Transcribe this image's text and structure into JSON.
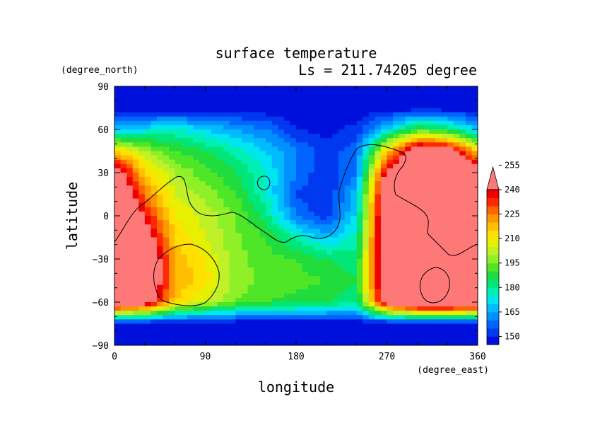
{
  "chart_data": {
    "type": "heatmap",
    "title": "surface temperature",
    "subtitle": "Ls = 211.74205 degree",
    "xlabel": "longitude",
    "ylabel": "latitude",
    "x_unit": "(degree_east)",
    "y_unit": "(degree_north)",
    "xlim": [
      0,
      360
    ],
    "ylim": [
      -90,
      90
    ],
    "x_ticks": [
      "0",
      "90",
      "180",
      "270",
      "360"
    ],
    "y_ticks": [
      "90",
      "60",
      "30",
      "0",
      "−30",
      "−60",
      "−90"
    ],
    "x_tick_values": [
      0,
      90,
      180,
      270,
      360
    ],
    "y_tick_values": [
      90,
      60,
      30,
      0,
      -30,
      -60,
      -90
    ],
    "colorbar": {
      "levels": [
        145,
        150,
        155,
        160,
        165,
        170,
        175,
        180,
        185,
        190,
        195,
        200,
        205,
        210,
        215,
        220,
        225,
        230,
        235,
        240,
        245,
        250,
        255,
        260
      ],
      "tick_labels": [
        "150",
        "165",
        "180",
        "195",
        "210",
        "225",
        "240",
        "255"
      ],
      "tick_values": [
        150,
        165,
        180,
        195,
        210,
        225,
        240,
        255
      ],
      "colors": [
        "#0010dc",
        "#0038f0",
        "#0064ff",
        "#0090ff",
        "#00bcff",
        "#00e6f0",
        "#00f0b4",
        "#00e678",
        "#20dc3c",
        "#50e628",
        "#90f028",
        "#c0f028",
        "#e6f000",
        "#ffe000",
        "#ffbe00",
        "#ff9600",
        "#ff6400",
        "#ff2800",
        "#f00000",
        "#ff7878"
      ],
      "extend": "max"
    },
    "field": {
      "description_values_kelvin": true,
      "lon_step": 30,
      "lat_step": 15,
      "lons": [
        0,
        30,
        60,
        90,
        120,
        150,
        180,
        210,
        240,
        270,
        300,
        330,
        360
      ],
      "lats": [
        90,
        75,
        60,
        45,
        30,
        15,
        0,
        -15,
        -30,
        -45,
        -60,
        -75,
        -90
      ],
      "values": [
        [
          145,
          145,
          145,
          145,
          145,
          145,
          145,
          145,
          145,
          145,
          145,
          145,
          145
        ],
        [
          146,
          146,
          146,
          146,
          146,
          146,
          146,
          146,
          146,
          146,
          146,
          146,
          146
        ],
        [
          168,
          172,
          176,
          170,
          165,
          160,
          150,
          148,
          152,
          170,
          190,
          185,
          168
        ],
        [
          215,
          200,
          190,
          185,
          178,
          170,
          160,
          152,
          158,
          215,
          255,
          250,
          215
        ],
        [
          250,
          215,
          200,
          192,
          185,
          175,
          160,
          150,
          160,
          245,
          270,
          270,
          250
        ],
        [
          268,
          225,
          205,
          198,
          190,
          176,
          155,
          150,
          168,
          258,
          275,
          275,
          268
        ],
        [
          275,
          238,
          210,
          203,
          195,
          182,
          160,
          152,
          172,
          262,
          278,
          278,
          275
        ],
        [
          275,
          250,
          215,
          205,
          196,
          190,
          178,
          168,
          178,
          262,
          278,
          278,
          275
        ],
        [
          272,
          262,
          218,
          210,
          197,
          192,
          190,
          185,
          182,
          262,
          278,
          278,
          272
        ],
        [
          270,
          265,
          220,
          212,
          198,
          193,
          192,
          190,
          185,
          262,
          278,
          278,
          270
        ],
        [
          262,
          250,
          215,
          205,
          195,
          190,
          188,
          185,
          182,
          250,
          268,
          268,
          262
        ],
        [
          145,
          145,
          145,
          145,
          145,
          145,
          145,
          145,
          145,
          145,
          145,
          145,
          145
        ],
        [
          145,
          145,
          145,
          145,
          145,
          145,
          145,
          145,
          145,
          145,
          145,
          145,
          145
        ]
      ]
    }
  }
}
